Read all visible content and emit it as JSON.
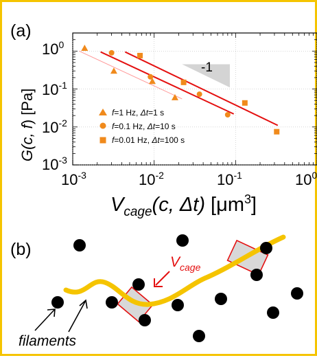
{
  "panels": {
    "a_label": "(a)",
    "b_label": "(b)"
  },
  "chart_data": {
    "type": "scatter",
    "xscale": "log",
    "yscale": "log",
    "xlim": [
      0.001,
      1
    ],
    "ylim": [
      0.001,
      3
    ],
    "x_ticks": [
      "10",
      "10",
      "10",
      "10"
    ],
    "x_tick_exponents": [
      "-3",
      "-2",
      "-1",
      "0"
    ],
    "y_ticks": [
      "10",
      "10",
      "10",
      "10"
    ],
    "y_tick_exponents": [
      "0",
      "-1",
      "-2",
      "-3"
    ],
    "ylabel_parts": {
      "main": "G(c, ",
      "italic_f": "f",
      "close": ")",
      "unit": " [Pa]"
    },
    "xlabel_parts": {
      "v": "V",
      "sub": "cage",
      "args": "(c, Δt)",
      "unit": " [μm",
      "sup": "3",
      "close": "]"
    },
    "slope_label": "-1",
    "grid": true,
    "legend_placement": "bottom-left",
    "series": [
      {
        "name": "f=1 Hz, Δt=1 s",
        "name_parts": [
          "f",
          "=1 Hz, ",
          "Δt",
          "=1 s"
        ],
        "marker": "triangle",
        "color": "#f08a1c",
        "x": [
          0.0014,
          0.0032,
          0.0095,
          0.018
        ],
        "y": [
          1.2,
          0.3,
          0.16,
          0.06
        ]
      },
      {
        "name": "f=0.1 Hz, Δt=10 s",
        "name_parts": [
          "f",
          "=0.1 Hz, ",
          "Δt",
          "=10 s"
        ],
        "marker": "circle",
        "color": "#f08a1c",
        "x": [
          0.003,
          0.009,
          0.036,
          0.08
        ],
        "y": [
          0.9,
          0.21,
          0.073,
          0.021
        ]
      },
      {
        "name": "f=0.01 Hz, Δt=100 s",
        "name_parts": [
          "f",
          "=0.01 Hz, ",
          "Δt",
          "=100 s"
        ],
        "marker": "square",
        "color": "#f08a1c",
        "x": [
          0.0067,
          0.023,
          0.13,
          0.32
        ],
        "y": [
          0.76,
          0.15,
          0.043,
          0.0075
        ]
      }
    ],
    "fit_lines": [
      {
        "color": "#ff9999",
        "x": [
          0.0012,
          0.022
        ],
        "y": [
          1.0,
          0.055
        ]
      },
      {
        "color": "#e41010",
        "x": [
          0.0022,
          0.095
        ],
        "y": [
          0.95,
          0.022
        ]
      },
      {
        "color": "#e41010",
        "x": [
          0.0044,
          0.33
        ],
        "y": [
          0.95,
          0.011
        ]
      }
    ],
    "slope_triangle": {
      "color": "#d4d4d4",
      "x": [
        0.022,
        0.085
      ],
      "y": [
        0.45,
        0.11
      ]
    }
  },
  "diagram": {
    "cage_label": "V",
    "cage_label_sub": "cage",
    "filaments_label": "filaments",
    "filament_color": "#f5c400",
    "cage_color": "#e41010",
    "arrow_color": "#e41010",
    "dot_color": "#000000"
  }
}
